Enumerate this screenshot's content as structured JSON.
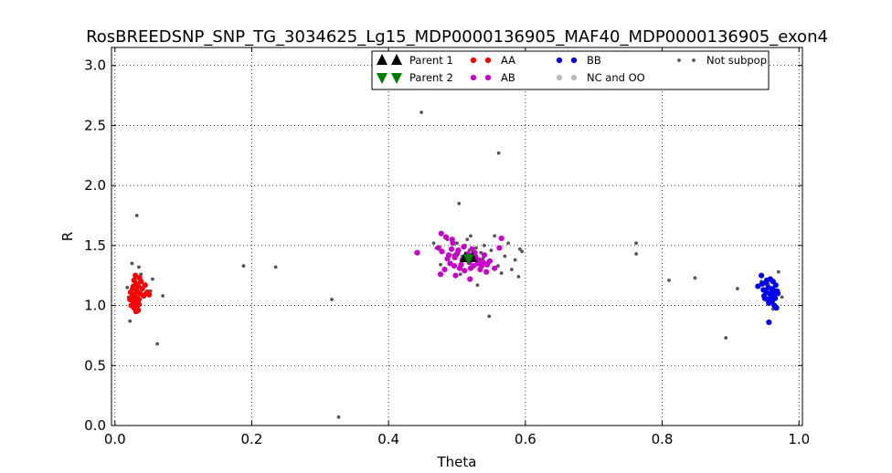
{
  "chart_data": {
    "type": "scatter",
    "title": "RosBREEDSNP_SNP_TG_3034625_Lg15_MDP0000136905_MAF40_MDP0000136905_exon4",
    "xlabel": "Theta",
    "ylabel": "R",
    "xlim": [
      -0.005,
      1.005
    ],
    "ylim": [
      0.0,
      3.15
    ],
    "xticks": [
      "0.0",
      "0.2",
      "0.4",
      "0.6",
      "0.8",
      "1.0"
    ],
    "yticks": [
      "0.0",
      "0.5",
      "1.0",
      "1.5",
      "2.0",
      "2.5",
      "3.0"
    ],
    "grid": true,
    "legend_placement": "top-center",
    "series": [
      {
        "name": "Not subpop",
        "color": "#555555",
        "marker": "dot-small",
        "points": [
          [
            0.032,
            1.75
          ],
          [
            0.448,
            2.61
          ],
          [
            0.561,
            2.27
          ],
          [
            0.503,
            1.85
          ],
          [
            0.188,
            1.33
          ],
          [
            0.235,
            1.32
          ],
          [
            0.317,
            1.05
          ],
          [
            0.327,
            0.07
          ],
          [
            0.062,
            0.68
          ],
          [
            0.07,
            1.08
          ],
          [
            0.055,
            1.22
          ],
          [
            0.052,
            1.12
          ],
          [
            0.025,
            1.35
          ],
          [
            0.035,
            1.32
          ],
          [
            0.02,
            1.07
          ],
          [
            0.022,
            0.87
          ],
          [
            0.03,
            0.95
          ],
          [
            0.038,
            1.26
          ],
          [
            0.018,
            1.15
          ],
          [
            0.547,
            0.91
          ],
          [
            0.595,
            1.45
          ],
          [
            0.592,
            1.47
          ],
          [
            0.59,
            1.24
          ],
          [
            0.585,
            1.38
          ],
          [
            0.58,
            1.3
          ],
          [
            0.575,
            1.52
          ],
          [
            0.565,
            1.27
          ],
          [
            0.555,
            1.58
          ],
          [
            0.52,
            1.58
          ],
          [
            0.53,
            1.17
          ],
          [
            0.47,
            1.48
          ],
          [
            0.476,
            1.34
          ],
          [
            0.466,
            1.52
          ],
          [
            0.44,
            1.44
          ],
          [
            0.515,
            1.55
          ],
          [
            0.505,
            1.26
          ],
          [
            0.495,
            1.42
          ],
          [
            0.535,
            1.44
          ],
          [
            0.545,
            1.36
          ],
          [
            0.528,
            1.48
          ],
          [
            0.512,
            1.5
          ],
          [
            0.5,
            1.52
          ],
          [
            0.54,
            1.5
          ],
          [
            0.56,
            1.33
          ],
          [
            0.57,
            1.41
          ],
          [
            0.55,
            1.46
          ],
          [
            0.486,
            1.55
          ],
          [
            0.523,
            1.33
          ],
          [
            0.508,
            1.41
          ],
          [
            0.538,
            1.39
          ],
          [
            0.518,
            1.46
          ],
          [
            0.762,
            1.52
          ],
          [
            0.762,
            1.43
          ],
          [
            0.81,
            1.21
          ],
          [
            0.848,
            1.23
          ],
          [
            0.893,
            0.73
          ],
          [
            0.91,
            1.14
          ],
          [
            0.95,
            1.05
          ],
          [
            0.955,
            1.18
          ],
          [
            0.97,
            1.28
          ],
          [
            0.975,
            1.07
          ],
          [
            0.962,
            0.97
          ],
          [
            0.945,
            1.2
          ]
        ]
      },
      {
        "name": "AA",
        "color": "#ff0000",
        "marker": "dot",
        "points": [
          [
            0.028,
            1.21
          ],
          [
            0.031,
            1.18
          ],
          [
            0.034,
            1.16
          ],
          [
            0.026,
            1.14
          ],
          [
            0.032,
            1.12
          ],
          [
            0.037,
            1.1
          ],
          [
            0.029,
            1.09
          ],
          [
            0.025,
            1.07
          ],
          [
            0.033,
            1.06
          ],
          [
            0.03,
            1.04
          ],
          [
            0.027,
            1.02
          ],
          [
            0.035,
            1.01
          ],
          [
            0.032,
            0.99
          ],
          [
            0.028,
            0.98
          ],
          [
            0.034,
            0.96
          ],
          [
            0.031,
            0.95
          ],
          [
            0.036,
            1.23
          ],
          [
            0.038,
            1.2
          ],
          [
            0.023,
            1.11
          ],
          [
            0.022,
            1.05
          ],
          [
            0.04,
            1.14
          ],
          [
            0.042,
            1.08
          ],
          [
            0.046,
            1.1
          ],
          [
            0.05,
            1.09
          ],
          [
            0.048,
            1.11
          ],
          [
            0.044,
            1.17
          ],
          [
            0.024,
            1.0
          ],
          [
            0.03,
            1.25
          ],
          [
            0.027,
            1.16
          ],
          [
            0.035,
            1.05
          ]
        ]
      },
      {
        "name": "AB",
        "color": "#cc00cc",
        "marker": "dot",
        "points": [
          [
            0.477,
            1.6
          ],
          [
            0.484,
            1.57
          ],
          [
            0.493,
            1.55
          ],
          [
            0.565,
            1.56
          ],
          [
            0.442,
            1.44
          ],
          [
            0.478,
            1.45
          ],
          [
            0.473,
            1.48
          ],
          [
            0.494,
            1.52
          ],
          [
            0.488,
            1.42
          ],
          [
            0.497,
            1.4
          ],
          [
            0.502,
            1.46
          ],
          [
            0.51,
            1.49
          ],
          [
            0.516,
            1.43
          ],
          [
            0.522,
            1.47
          ],
          [
            0.527,
            1.41
          ],
          [
            0.532,
            1.38
          ],
          [
            0.538,
            1.36
          ],
          [
            0.544,
            1.34
          ],
          [
            0.548,
            1.37
          ],
          [
            0.555,
            1.31
          ],
          [
            0.562,
            1.48
          ],
          [
            0.49,
            1.35
          ],
          [
            0.496,
            1.33
          ],
          [
            0.504,
            1.31
          ],
          [
            0.511,
            1.29
          ],
          [
            0.518,
            1.36
          ],
          [
            0.524,
            1.33
          ],
          [
            0.534,
            1.3
          ],
          [
            0.482,
            1.3
          ],
          [
            0.476,
            1.26
          ],
          [
            0.498,
            1.25
          ],
          [
            0.519,
            1.22
          ],
          [
            0.508,
            1.38
          ],
          [
            0.486,
            1.39
          ],
          [
            0.5,
            1.43
          ],
          [
            0.54,
            1.42
          ],
          [
            0.514,
            1.4
          ],
          [
            0.526,
            1.44
          ],
          [
            0.492,
            1.47
          ],
          [
            0.53,
            1.35
          ],
          [
            0.543,
            1.28
          ],
          [
            0.506,
            1.34
          ],
          [
            0.52,
            1.31
          ],
          [
            0.536,
            1.33
          ]
        ]
      },
      {
        "name": "BB",
        "color": "#0000ee",
        "marker": "dot",
        "points": [
          [
            0.945,
            1.25
          ],
          [
            0.958,
            1.22
          ],
          [
            0.962,
            1.2
          ],
          [
            0.951,
            1.19
          ],
          [
            0.966,
            1.17
          ],
          [
            0.94,
            1.16
          ],
          [
            0.955,
            1.15
          ],
          [
            0.96,
            1.14
          ],
          [
            0.968,
            1.12
          ],
          [
            0.952,
            1.11
          ],
          [
            0.957,
            1.1
          ],
          [
            0.963,
            1.09
          ],
          [
            0.949,
            1.08
          ],
          [
            0.959,
            1.07
          ],
          [
            0.965,
            1.06
          ],
          [
            0.954,
            1.05
          ],
          [
            0.961,
            1.04
          ],
          [
            0.956,
            1.02
          ],
          [
            0.964,
            1.0
          ],
          [
            0.967,
            0.98
          ],
          [
            0.956,
            0.86
          ],
          [
            0.948,
            1.13
          ],
          [
            0.953,
            1.21
          ],
          [
            0.962,
            1.13
          ],
          [
            0.958,
            1.03
          ],
          [
            0.946,
            1.18
          ],
          [
            0.969,
            1.1
          ],
          [
            0.95,
            1.06
          ]
        ]
      },
      {
        "name": "NC and OO",
        "color": "#bbbbbb",
        "marker": "dot",
        "points": []
      },
      {
        "name": "Parent 1",
        "color": "#000000",
        "marker": "triangle-up",
        "points": [
          [
            0.512,
            1.4
          ],
          [
            0.522,
            1.4
          ]
        ]
      },
      {
        "name": "Parent 2",
        "color": "#008000",
        "marker": "triangle-down",
        "points": [
          [
            0.517,
            1.39
          ]
        ]
      }
    ],
    "legend_entries": [
      {
        "label": "Parent 1",
        "marker": "triangle-up",
        "color": "#000000"
      },
      {
        "label": "Parent 2",
        "marker": "triangle-down",
        "color": "#008000"
      },
      {
        "label": "AA",
        "marker": "dot",
        "color": "#ff0000"
      },
      {
        "label": "AB",
        "marker": "dot",
        "color": "#cc00cc"
      },
      {
        "label": "BB",
        "marker": "dot",
        "color": "#0000ee"
      },
      {
        "label": "NC and OO",
        "marker": "dot",
        "color": "#bbbbbb"
      },
      {
        "label": "Not subpop",
        "marker": "dot-small",
        "color": "#555555"
      }
    ]
  }
}
